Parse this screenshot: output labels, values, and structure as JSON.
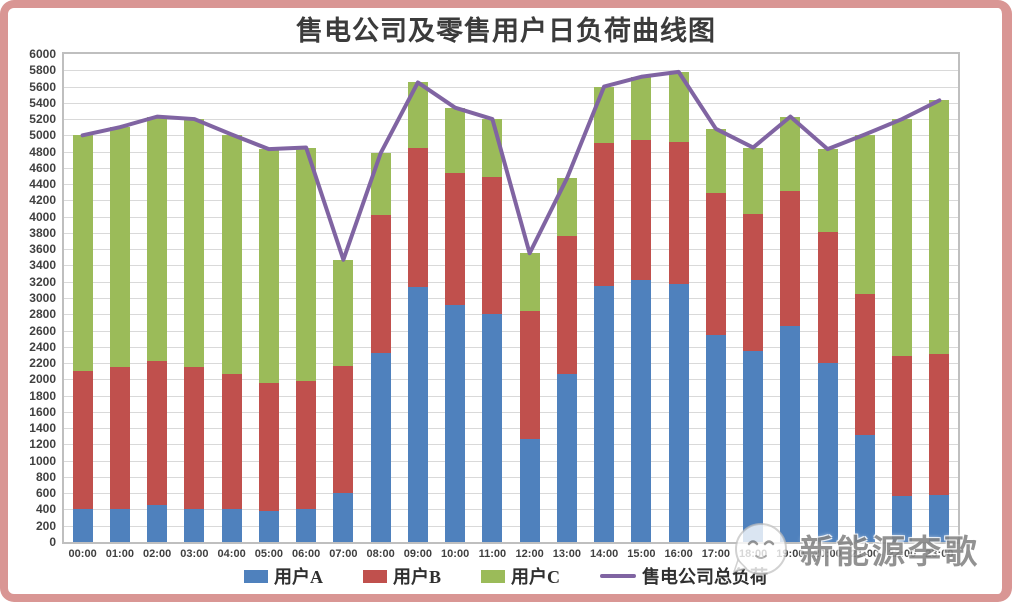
{
  "title": "售电公司及零售用户日负荷曲线图",
  "watermark": {
    "text": "新能源李歌",
    "logo": "wechat-avatar-icon"
  },
  "axis": {
    "grid_color": "#D9D9D9",
    "border_color": "#BFBFBF",
    "tick_color": "#404040"
  },
  "frame_color": "#D99694",
  "chart_data": {
    "type": "bar",
    "subtype": "stacked-bars-with-line-overlay",
    "title": "售电公司及零售用户日负荷曲线图",
    "xlabel": "",
    "ylabel": "",
    "ylim": [
      0,
      6000
    ],
    "ytick_step": 200,
    "grid": true,
    "legend_position": "bottom",
    "categories": [
      "00:00",
      "01:00",
      "02:00",
      "03:00",
      "04:00",
      "05:00",
      "06:00",
      "07:00",
      "08:00",
      "09:00",
      "10:00",
      "11:00",
      "12:00",
      "13:00",
      "14:00",
      "15:00",
      "16:00",
      "17:00",
      "18:00",
      "19:00",
      "20:00",
      "21:00",
      "22:00",
      "23:00"
    ],
    "series": [
      {
        "name": "用户A",
        "type": "bar",
        "color": "#4F81BD",
        "values": [
          400,
          400,
          450,
          400,
          400,
          380,
          400,
          600,
          2330,
          3130,
          2910,
          2800,
          1270,
          2070,
          3150,
          3220,
          3170,
          2550,
          2350,
          2650,
          2200,
          1320,
          570,
          580
        ]
      },
      {
        "name": "用户B",
        "type": "bar",
        "color": "#C0504D",
        "values": [
          1700,
          1750,
          1780,
          1750,
          1660,
          1570,
          1580,
          1570,
          1690,
          1710,
          1630,
          1690,
          1570,
          1690,
          1750,
          1720,
          1750,
          1740,
          1680,
          1670,
          1610,
          1730,
          1720,
          1730
        ]
      },
      {
        "name": "用户C",
        "type": "bar",
        "color": "#9BBB59",
        "values": [
          2900,
          2950,
          3000,
          3050,
          2950,
          2880,
          2870,
          1300,
          760,
          810,
          800,
          710,
          710,
          710,
          700,
          780,
          860,
          790,
          820,
          910,
          1020,
          1960,
          2910,
          3120
        ]
      },
      {
        "name": "售电公司总负荷",
        "type": "line",
        "color": "#8064A2",
        "values": [
          5000,
          5100,
          5230,
          5200,
          5010,
          4830,
          4850,
          3470,
          4780,
          5650,
          5340,
          5200,
          3550,
          4470,
          5600,
          5720,
          5780,
          5080,
          4850,
          5230,
          4830,
          5010,
          5200,
          5430
        ]
      }
    ]
  }
}
